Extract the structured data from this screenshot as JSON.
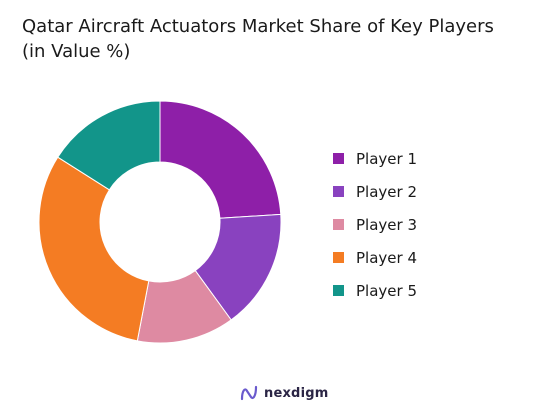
{
  "chart_data": {
    "type": "pie",
    "variant": "donut",
    "title_lines": [
      "Qatar Aircraft Actuators Market Share of Key Players",
      "(in Value %)"
    ],
    "categories": [
      "Player 1",
      "Player 2",
      "Player 3",
      "Player 4",
      "Player 5"
    ],
    "values": [
      24,
      16,
      13,
      31,
      16
    ],
    "unit": "%",
    "colors": [
      "#8E1FA8",
      "#8942BF",
      "#DE8AA2",
      "#F47C23",
      "#12958A"
    ],
    "legend_position": "right",
    "grid": false
  },
  "brand": {
    "name": "nexdigm",
    "icon": "nexdigm-logo-icon"
  }
}
